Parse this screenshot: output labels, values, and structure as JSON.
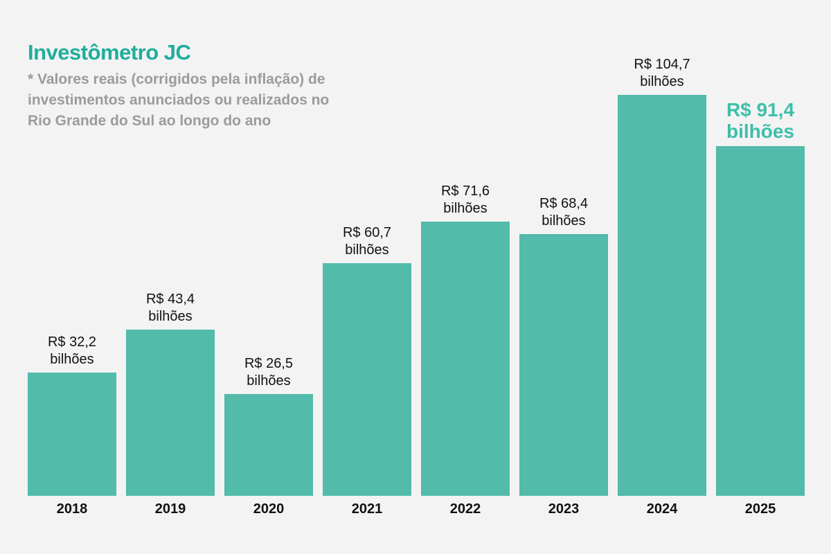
{
  "chart_data": {
    "type": "bar",
    "title": "Investômetro JC",
    "subtitle": "* Valores reais (corrigidos pela inflação) de\ninvestimentos anunciados ou realizados no\nRio Grande do Sul ao longo do ano",
    "categories": [
      "2018",
      "2019",
      "2020",
      "2021",
      "2022",
      "2023",
      "2024",
      "2025"
    ],
    "values": [
      32.2,
      43.4,
      26.5,
      60.7,
      71.6,
      68.4,
      104.7,
      91.4
    ],
    "value_labels": [
      "R$ 32,2\nbilhões",
      "R$ 43,4\nbilhões",
      "R$ 26,5\nbilhões",
      "R$ 60,7\nbilhões",
      "R$ 71,6\nbilhões",
      "R$ 68,4\nbilhões",
      "R$ 104,7\nbilhões",
      "R$ 91,4\nbilhões"
    ],
    "color": "#52bbaa",
    "highlight_category": "2025",
    "highlight_color": "#3dbfa9"
  }
}
